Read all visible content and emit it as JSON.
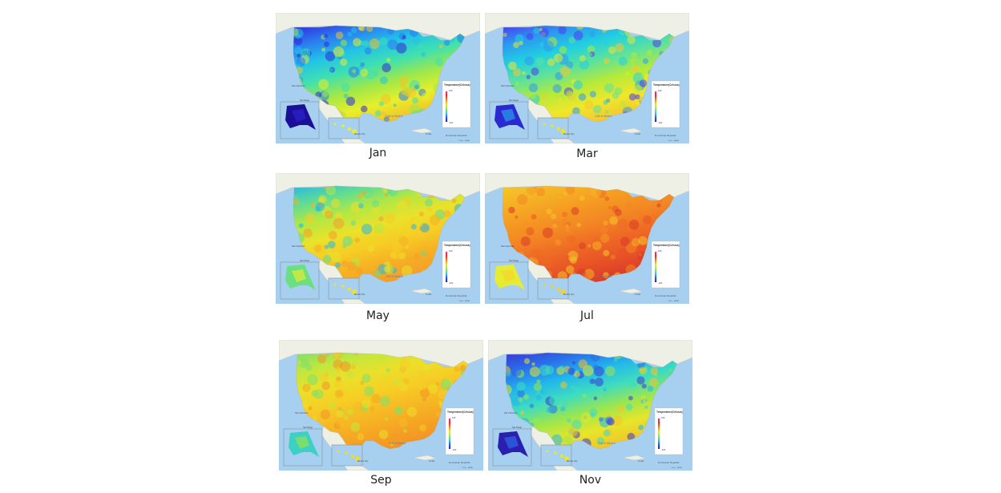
{
  "figure": {
    "panels": [
      {
        "month": "Jan",
        "palette": [
          "#2f2ad8",
          "#2c78f0",
          "#22c2e8",
          "#3fe0b0",
          "#9fe84a",
          "#e8ef2a",
          "#f2c22a"
        ],
        "alaska": [
          "#1a0f96",
          "#2a1fc8"
        ],
        "hawaii": "#e8ef2a"
      },
      {
        "month": "Mar",
        "palette": [
          "#4a3cf0",
          "#2c9af0",
          "#22d0e0",
          "#5fe29a",
          "#b5ea3a",
          "#eee82a",
          "#f4c830"
        ],
        "alaska": [
          "#2a2ad0",
          "#2a8fe8"
        ],
        "hawaii": "#eee22a"
      },
      {
        "month": "May",
        "palette": [
          "#27b8e6",
          "#5fdc94",
          "#b2e844",
          "#eae22a",
          "#f6cd25",
          "#f6b024",
          "#f49e2a"
        ],
        "alaska": [
          "#6be080",
          "#d6ea38"
        ],
        "hawaii": "#f2e02a"
      },
      {
        "month": "Jul",
        "palette": [
          "#f4c82a",
          "#f5b225",
          "#f59a22",
          "#f38624",
          "#ee6a25",
          "#e85326",
          "#d93b2a"
        ],
        "alaska": [
          "#e6eb34",
          "#f2d82a"
        ],
        "hawaii": "#f2d22a"
      },
      {
        "month": "Sep",
        "palette": [
          "#7fe06a",
          "#c2e73e",
          "#ebe02a",
          "#f6ce25",
          "#f6ba24",
          "#f5a524",
          "#f39326"
        ],
        "alaska": [
          "#3dd0c4",
          "#8ae05a"
        ],
        "hawaii": "#efdc2a"
      },
      {
        "month": "Nov",
        "palette": [
          "#3b3ad4",
          "#2a6eea",
          "#22b6ec",
          "#3edcc0",
          "#9ae650",
          "#e6e62a",
          "#f2c42a"
        ],
        "alaska": [
          "#2a1fb0",
          "#2a60e0"
        ],
        "hawaii": "#e6e82a"
      }
    ],
    "map_labels": {
      "gulf": "Gulf of Mexico",
      "cuba": "Cuba",
      "dr": "Dominican Republic",
      "city_sf": "San Francisco",
      "city_sd": "San Diego",
      "city_mx": "Mexico City",
      "attribution": "© Esri · HERE"
    },
    "legend": {
      "title": "Temperature(Celsius)",
      "max": "120",
      "min": "-120",
      "gradient": [
        "#ef3b8c",
        "#e82a2a",
        "#f08a22",
        "#f2e02a",
        "#9be842",
        "#2ad0e0",
        "#2a5ae8",
        "#3a1ab8"
      ]
    },
    "colors": {
      "ocean": "#a7cff0",
      "land": "#eef0e6",
      "border": "#c9c9bf"
    }
  }
}
